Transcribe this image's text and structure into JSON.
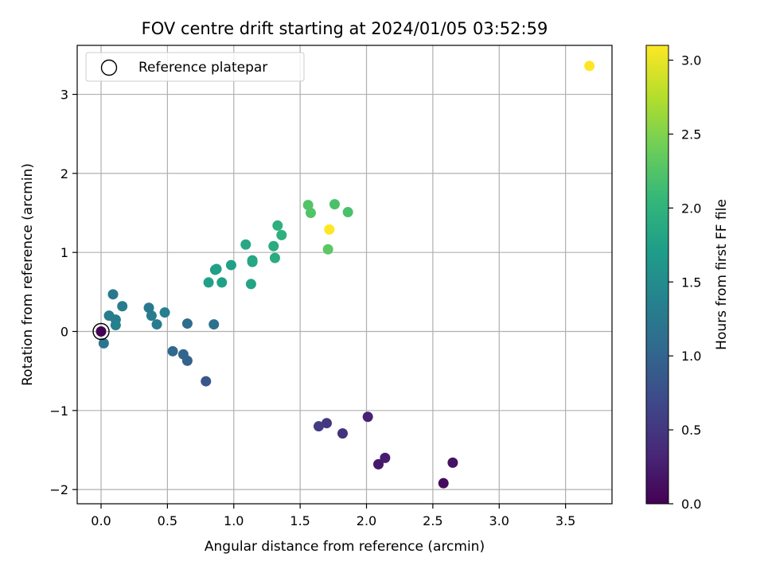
{
  "chart_data": {
    "type": "scatter",
    "title": "FOV centre drift starting at 2024/01/05 03:52:59",
    "xlabel": "Angular distance from reference (arcmin)",
    "ylabel": "Rotation from reference (arcmin)",
    "xlim": [
      -0.18,
      3.85
    ],
    "ylim": [
      -2.18,
      3.62
    ],
    "xticks": [
      "0.0",
      "0.5",
      "1.0",
      "1.5",
      "2.0",
      "2.5",
      "3.0",
      "3.5"
    ],
    "yticks": [
      "−2",
      "−1",
      "0",
      "1",
      "2",
      "3"
    ],
    "grid": true,
    "legend": {
      "position": "top-left",
      "entries": [
        "Reference platepar"
      ]
    },
    "colorbar": {
      "label": "Hours from first FF file",
      "colormap": "viridis",
      "range": [
        0.0,
        3.1
      ],
      "ticks": [
        "0.0",
        "0.5",
        "1.0",
        "1.5",
        "2.0",
        "2.5",
        "3.0"
      ]
    },
    "reference_point": {
      "x": 0.0,
      "y": 0.0
    },
    "points": [
      {
        "x": 0.0,
        "y": 0.0,
        "c": 0.0
      },
      {
        "x": 2.58,
        "y": -1.92,
        "c": 0.1
      },
      {
        "x": 2.65,
        "y": -1.66,
        "c": 0.15
      },
      {
        "x": 2.09,
        "y": -1.68,
        "c": 0.2
      },
      {
        "x": 2.14,
        "y": -1.6,
        "c": 0.25
      },
      {
        "x": 2.01,
        "y": -1.08,
        "c": 0.3
      },
      {
        "x": 1.82,
        "y": -1.29,
        "c": 0.45
      },
      {
        "x": 1.7,
        "y": -1.16,
        "c": 0.5
      },
      {
        "x": 1.64,
        "y": -1.2,
        "c": 0.55
      },
      {
        "x": 0.79,
        "y": -0.63,
        "c": 0.85
      },
      {
        "x": 0.65,
        "y": -0.37,
        "c": 0.95
      },
      {
        "x": 0.62,
        "y": -0.29,
        "c": 1.0
      },
      {
        "x": 0.54,
        "y": -0.25,
        "c": 1.05
      },
      {
        "x": 0.65,
        "y": 0.1,
        "c": 1.1
      },
      {
        "x": 0.85,
        "y": 0.09,
        "c": 1.15
      },
      {
        "x": 0.02,
        "y": -0.15,
        "c": 1.2
      },
      {
        "x": 0.42,
        "y": 0.09,
        "c": 1.3
      },
      {
        "x": 0.38,
        "y": 0.2,
        "c": 1.3
      },
      {
        "x": 0.36,
        "y": 0.3,
        "c": 1.25
      },
      {
        "x": 0.48,
        "y": 0.24,
        "c": 1.35
      },
      {
        "x": 0.06,
        "y": 0.2,
        "c": 1.3
      },
      {
        "x": 0.11,
        "y": 0.15,
        "c": 1.3
      },
      {
        "x": 0.11,
        "y": 0.08,
        "c": 1.35
      },
      {
        "x": 0.16,
        "y": 0.32,
        "c": 1.3
      },
      {
        "x": 0.09,
        "y": 0.47,
        "c": 1.25
      },
      {
        "x": 0.81,
        "y": 0.62,
        "c": 1.75
      },
      {
        "x": 0.91,
        "y": 0.62,
        "c": 1.75
      },
      {
        "x": 0.86,
        "y": 0.78,
        "c": 1.7
      },
      {
        "x": 0.87,
        "y": 0.79,
        "c": 1.75
      },
      {
        "x": 0.98,
        "y": 0.84,
        "c": 1.75
      },
      {
        "x": 1.13,
        "y": 0.6,
        "c": 1.8
      },
      {
        "x": 1.14,
        "y": 0.88,
        "c": 1.8
      },
      {
        "x": 1.14,
        "y": 0.9,
        "c": 1.85
      },
      {
        "x": 1.09,
        "y": 1.1,
        "c": 1.85
      },
      {
        "x": 1.31,
        "y": 0.93,
        "c": 1.9
      },
      {
        "x": 1.3,
        "y": 1.08,
        "c": 1.9
      },
      {
        "x": 1.33,
        "y": 1.34,
        "c": 1.95
      },
      {
        "x": 1.36,
        "y": 1.22,
        "c": 1.95
      },
      {
        "x": 1.56,
        "y": 1.6,
        "c": 2.25
      },
      {
        "x": 1.58,
        "y": 1.5,
        "c": 2.25
      },
      {
        "x": 1.76,
        "y": 1.61,
        "c": 2.2
      },
      {
        "x": 1.86,
        "y": 1.51,
        "c": 2.2
      },
      {
        "x": 1.71,
        "y": 1.04,
        "c": 2.3
      },
      {
        "x": 1.72,
        "y": 1.29,
        "c": 3.1
      },
      {
        "x": 3.68,
        "y": 3.36,
        "c": 3.1
      }
    ]
  }
}
